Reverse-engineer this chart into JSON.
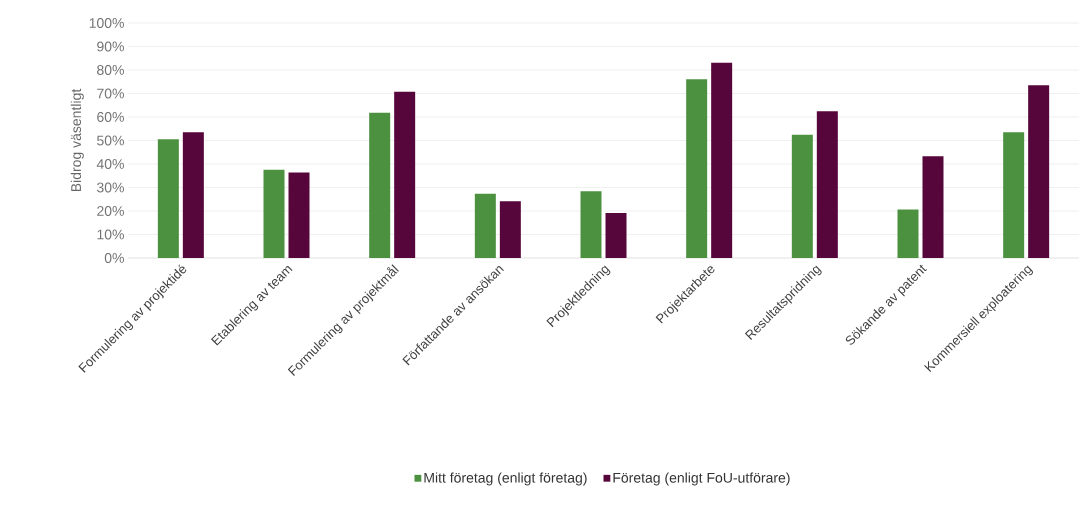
{
  "chart_data": {
    "type": "bar",
    "ylabel": "Bidrog väsentligt",
    "categories": [
      "Formulering av projektidé",
      "Etablering av team",
      "Formulering av projektmål",
      "Författande av ansökan",
      "Projektledning",
      "Projektarbete",
      "Resultatspridning",
      "Sökande av patent",
      "Kommersiell exploatering"
    ],
    "series": [
      {
        "name": "Mitt företag (enligt företag)",
        "color": "#4c9140",
        "values": [
          50.5,
          37.6,
          61.8,
          27.3,
          28.4,
          76.1,
          52.4,
          20.6,
          53.5
        ]
      },
      {
        "name": "Företag (enligt FoU-utförare)",
        "color": "#56063a",
        "values": [
          53.5,
          36.4,
          70.7,
          24.1,
          19.1,
          83.1,
          62.4,
          43.3,
          73.5
        ]
      }
    ],
    "ylim": [
      0,
      100
    ],
    "yticks": [
      {
        "value": 0,
        "label": "0%"
      },
      {
        "value": 10,
        "label": "10%"
      },
      {
        "value": 20,
        "label": "20%"
      },
      {
        "value": 30,
        "label": "30%"
      },
      {
        "value": 40,
        "label": "40%"
      },
      {
        "value": 50,
        "label": "50%"
      },
      {
        "value": 60,
        "label": "60%"
      },
      {
        "value": 70,
        "label": "70%"
      },
      {
        "value": 80,
        "label": "80%"
      },
      {
        "value": 90,
        "label": "90%"
      },
      {
        "value": 100,
        "label": "100%"
      }
    ],
    "grid": "y",
    "legend": "bottom"
  }
}
